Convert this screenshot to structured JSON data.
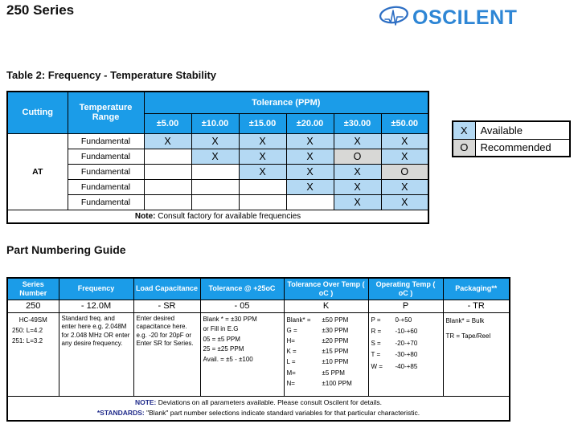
{
  "page": {
    "title": "250 Series"
  },
  "logo": {
    "brand": "OSCILENT",
    "icon": "pulse-ellipse-icon"
  },
  "colors": {
    "header_blue": "#1b9ce8",
    "available_blue": "#b4d9f3",
    "recommended_gray": "#d8d8d6",
    "note_navy": "#1f2a8a",
    "logo_blue": "#2e86d5"
  },
  "table2": {
    "heading": "Table 2: Frequency - Temperature Stability",
    "col_cutting": "Cutting",
    "col_temp_range": "Temperature Range",
    "col_tolerance_group": "Tolerance (PPM)",
    "tolerance_headers": [
      "±5.00",
      "±10.00",
      "±15.00",
      "±20.00",
      "±30.00",
      "±50.00"
    ],
    "cutting": "AT",
    "rows": [
      {
        "range": "Fundamental",
        "cells": [
          "X",
          "X",
          "X",
          "X",
          "X",
          "X"
        ]
      },
      {
        "range": "Fundamental",
        "cells": [
          "",
          "X",
          "X",
          "X",
          "O",
          "X"
        ]
      },
      {
        "range": "Fundamental",
        "cells": [
          "",
          "",
          "X",
          "X",
          "X",
          "O"
        ]
      },
      {
        "range": "Fundamental",
        "cells": [
          "",
          "",
          "",
          "X",
          "X",
          "X"
        ]
      },
      {
        "range": "Fundamental",
        "cells": [
          "",
          "",
          "",
          "",
          "X",
          "X"
        ]
      }
    ],
    "note_label": "Note:",
    "note_text": " Consult factory for available frequencies"
  },
  "legend": {
    "items": [
      {
        "mark": "X",
        "label": "Available"
      },
      {
        "mark": "O",
        "label": "Recommended"
      }
    ]
  },
  "part_guide": {
    "heading": "Part Numbering Guide",
    "columns": [
      "Series Number",
      "Frequency",
      "Load Capacitance",
      "Tolerance @ +25oC",
      "Tolerance Over Temp ( oC )",
      "Operating Temp ( oC )",
      "Packaging**"
    ],
    "codes": [
      "250",
      "- 12.0M",
      "- SR",
      "- 05",
      "K",
      "P",
      "- TR"
    ],
    "details": {
      "series_lines": [
        "HC-49SM",
        "250: L=4.2",
        "251: L=3.2"
      ],
      "frequency_text": "Standard freq. and enter here e.g. 2.048M for 2.048 MHz OR enter any desire frequency.",
      "load_text": "Enter desired capacitance here. e.g. -20 for 20pF or Enter SR for Series.",
      "tol25_lines": [
        "Blank * = ±30 PPM",
        "or Fill in E.G",
        "05 = ±5 PPM",
        "25 = ±25 PPM",
        "Avail. = ±5 - ±100"
      ],
      "tol_over_temp_pairs": [
        [
          "Blank* =",
          "±50 PPM"
        ],
        [
          "G =",
          "±30 PPM"
        ],
        [
          "H=",
          "±20 PPM"
        ],
        [
          "K =",
          "±15 PPM"
        ],
        [
          "L =",
          "±10 PPM"
        ],
        [
          "M=",
          "±5 PPM"
        ],
        [
          "N=",
          "±100 PPM"
        ]
      ],
      "op_temp_pairs": [
        [
          "P =",
          "0-+50"
        ],
        [
          "R =",
          "-10-+60"
        ],
        [
          "S =",
          "-20-+70"
        ],
        [
          "T =",
          "-30-+80"
        ],
        [
          "W =",
          "-40-+85"
        ]
      ],
      "packaging_lines": [
        "Blank* = Bulk",
        "TR = Tape/Reel"
      ]
    },
    "note_label": "NOTE:",
    "note_text": " Deviations on all parameters available. Please consult Oscilent for details.",
    "standards_label": "*STANDARDS:",
    "standards_text": " \"Blank\" part number selections indicate standard variables for that particular characteristic."
  }
}
